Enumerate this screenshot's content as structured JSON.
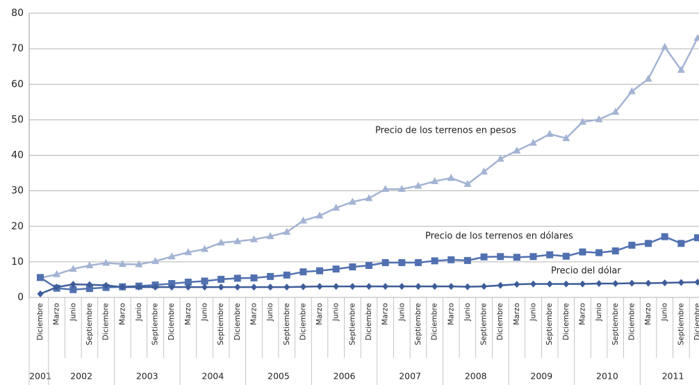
{
  "chart_data": {
    "type": "line",
    "categories": [
      "Diciembre",
      "Marzo",
      "Junio",
      "Septiembre",
      "Diciembre",
      "Marzo",
      "Junio",
      "Septiembre",
      "Diciembre",
      "Marzo",
      "Junio",
      "Septiembre",
      "Diciembre",
      "Marzo",
      "Junio",
      "Septiembre",
      "Diciembre",
      "Marzo",
      "Junio",
      "Septiembre",
      "Diciembre",
      "Marzo",
      "Junio",
      "Septiembre",
      "Diciembre",
      "Marzo",
      "Junio",
      "Septiembre",
      "Diciembre",
      "Marzo",
      "Junio",
      "Septiembre",
      "Diciembre",
      "Marzo",
      "Junio",
      "Septiembre",
      "Diciembre",
      "Marzo",
      "Junio",
      "Septiembre",
      "Diciembre"
    ],
    "years": [
      "2001",
      "2002",
      "2003",
      "2004",
      "2005",
      "2006",
      "2007",
      "2008",
      "2009",
      "2010",
      "2011"
    ],
    "ylim": [
      0,
      80
    ],
    "yticks": [
      0,
      10,
      20,
      30,
      40,
      50,
      60,
      70,
      80
    ],
    "grid": true,
    "series": [
      {
        "name": "Precio de los terrenos en pesos",
        "color": "#a3b3d3",
        "marker": "triangle",
        "values": [
          5.5,
          6.5,
          8,
          9,
          9.7,
          9.4,
          9.3,
          10.2,
          11.5,
          12.7,
          13.6,
          15.4,
          15.8,
          16.3,
          17.2,
          18.4,
          21.6,
          23,
          25.2,
          26.9,
          27.9,
          30.5,
          30.5,
          31.4,
          32.7,
          33.6,
          31.9,
          35.4,
          39,
          41.3,
          43.5,
          46,
          44.8,
          49.4,
          50.1,
          52.2,
          58,
          61.5,
          70.5,
          64,
          73
        ]
      },
      {
        "name": "Precio de los terrenos en dólares",
        "color": "#5070b0",
        "marker": "square",
        "values": [
          5.6,
          2.6,
          2.2,
          2.5,
          2.8,
          3,
          3.2,
          3.5,
          3.9,
          4.3,
          4.6,
          5.1,
          5.4,
          5.5,
          5.9,
          6.3,
          7.2,
          7.5,
          8,
          8.6,
          9,
          9.8,
          9.8,
          9.8,
          10.3,
          10.6,
          10.4,
          11.4,
          11.5,
          11.3,
          11.5,
          12,
          11.6,
          12.8,
          12.6,
          13.1,
          14.7,
          15.2,
          17.1,
          15.2,
          16.8
        ]
      },
      {
        "name": "Precio del dólar",
        "color": "#3d5c99",
        "marker": "diamond",
        "values": [
          1,
          2.9,
          3.7,
          3.6,
          3.4,
          2.9,
          2.9,
          2.9,
          2.9,
          2.9,
          2.9,
          2.9,
          2.9,
          2.9,
          2.9,
          2.9,
          3,
          3.1,
          3.1,
          3.1,
          3.1,
          3.1,
          3.1,
          3.1,
          3.1,
          3.1,
          3,
          3.1,
          3.4,
          3.7,
          3.8,
          3.8,
          3.8,
          3.8,
          3.9,
          3.9,
          4,
          4,
          4.1,
          4.2,
          4.3
        ]
      }
    ]
  }
}
